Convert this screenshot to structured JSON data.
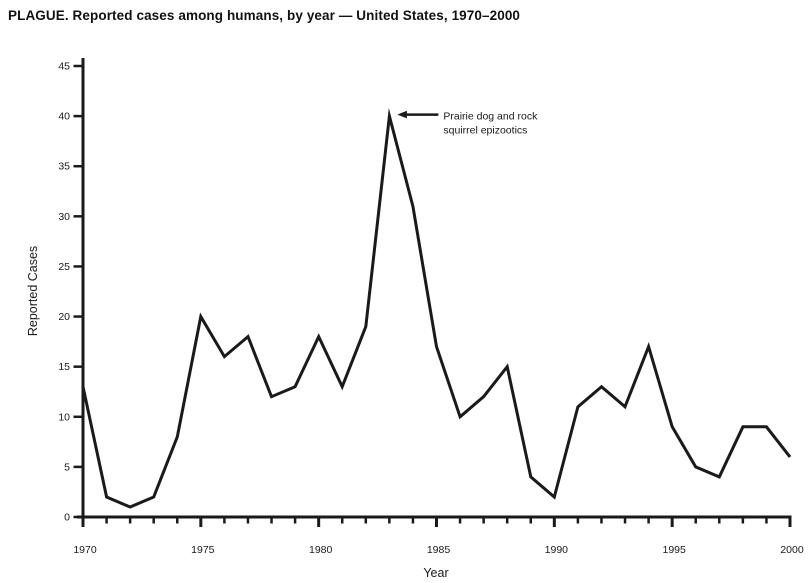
{
  "title": "PLAGUE. Reported cases among humans, by year — United States, 1970–2000",
  "chart_data": {
    "type": "line",
    "title": "PLAGUE. Reported cases among humans, by year — United States, 1970–2000",
    "xlabel": "Year",
    "ylabel": "Reported Cases",
    "xlim": [
      1970,
      2000
    ],
    "ylim": [
      0,
      45
    ],
    "y_ticks": [
      0,
      5,
      10,
      15,
      20,
      25,
      30,
      35,
      40,
      45
    ],
    "x_major_ticks": [
      1970,
      1975,
      1980,
      1985,
      1990,
      1995,
      2000
    ],
    "x_minor_tick_interval": 1,
    "grid": false,
    "legend": null,
    "line_color": "#1a1a1a",
    "x": [
      1970,
      1971,
      1972,
      1973,
      1974,
      1975,
      1976,
      1977,
      1978,
      1979,
      1980,
      1981,
      1982,
      1983,
      1984,
      1985,
      1986,
      1987,
      1988,
      1989,
      1990,
      1991,
      1992,
      1993,
      1994,
      1995,
      1996,
      1997,
      1998,
      1999,
      2000
    ],
    "values": [
      13,
      2,
      1,
      2,
      8,
      20,
      16,
      18,
      12,
      13,
      18,
      13,
      19,
      40,
      31,
      17,
      10,
      12,
      15,
      4,
      2,
      11,
      13,
      11,
      17,
      9,
      5,
      4,
      9,
      9,
      6
    ],
    "annotation": {
      "text_line1": "Prairie dog and rock",
      "text_line2": "squirrel epizootics",
      "arrow_target_year": 1983,
      "arrow_target_value": 40
    }
  }
}
